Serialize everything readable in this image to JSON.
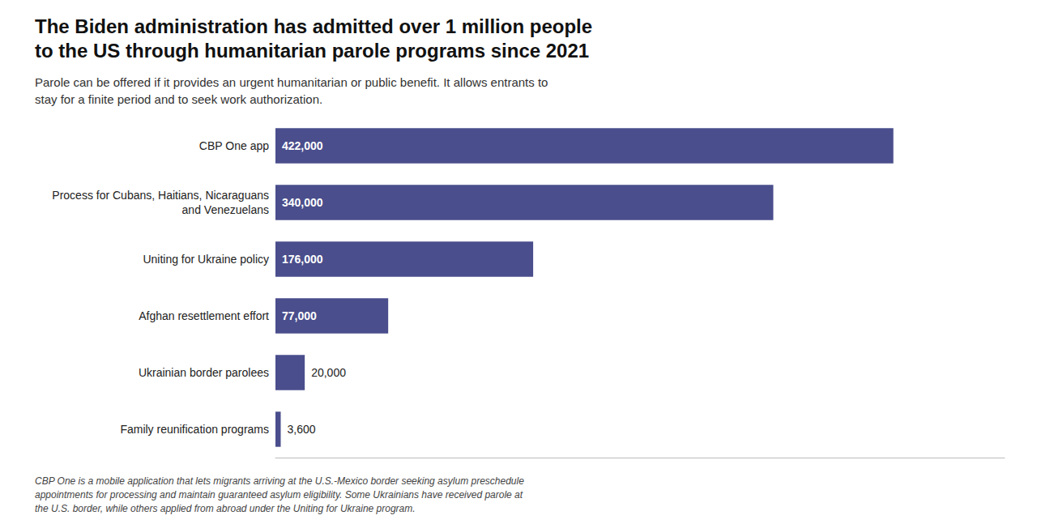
{
  "chart_data": {
    "type": "bar",
    "orientation": "horizontal",
    "title": "The Biden administration has admitted over 1 million people\nto the US through humanitarian parole programs since 2021",
    "subtitle": "Parole can be offered if it provides an urgent humanitarian or public benefit. It allows entrants to\nstay for a finite period and to seek work authorization.",
    "annotations": [
      "CBP One is a mobile application that lets migrants arriving at the U.S.-Mexico border seeking asylum preschedule\nappointments for processing and maintain guaranteed asylum eligibility. Some Ukrainians have received parole at\nthe U.S. border, while others applied from abroad under the Uniting for Ukraine program."
    ],
    "categories": [
      "CBP One app",
      "Process for Cubans, Haitians, Nicaraguans\nand Venezuelans",
      "Uniting for Ukraine policy",
      "Afghan resettlement effort",
      "Ukrainian border parolees",
      "Family reunification programs"
    ],
    "values": [
      422000,
      340000,
      176000,
      77000,
      20000,
      3600
    ],
    "value_labels": [
      "422,000",
      "340,000",
      "176,000",
      "77,000",
      "20,000",
      "3,600"
    ],
    "color": "#4a4e8c",
    "xlim": [
      0,
      497960
    ],
    "data_labels": true,
    "tick_labels": "y",
    "grid": false
  }
}
